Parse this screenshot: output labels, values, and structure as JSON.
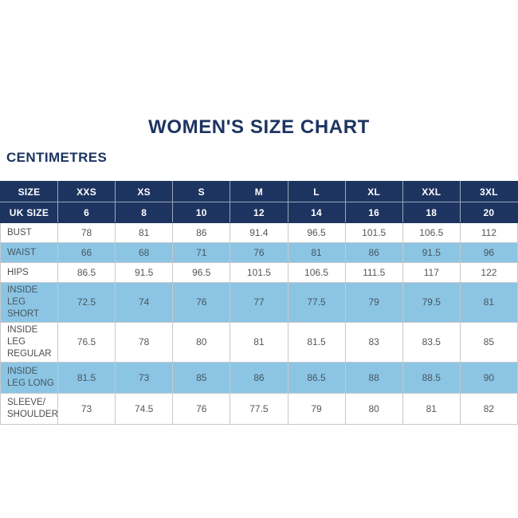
{
  "page": {
    "title": "WOMEN'S SIZE CHART",
    "unit_heading": "CENTIMETRES"
  },
  "colors": {
    "navy_header": "#1d3461",
    "highlight_blue": "#8cc5e4",
    "data_text": "#55565a",
    "grid_line": "#c6c8ca",
    "background": "#ffffff"
  },
  "chart_data": {
    "type": "table",
    "title": "WOMEN'S SIZE CHART",
    "unit_label": "CENTIMETRES",
    "header_rows": [
      {
        "label": "SIZE",
        "values": [
          "XXS",
          "XS",
          "S",
          "M",
          "L",
          "XL",
          "XXL",
          "3XL"
        ]
      },
      {
        "label": "UK SIZE",
        "values": [
          "6",
          "8",
          "10",
          "12",
          "14",
          "16",
          "18",
          "20"
        ]
      }
    ],
    "body_rows": [
      {
        "label": "BUST",
        "highlight": false,
        "values": [
          "78",
          "81",
          "86",
          "91.4",
          "96.5",
          "101.5",
          "106.5",
          "112"
        ]
      },
      {
        "label": "WAIST",
        "highlight": true,
        "values": [
          "66",
          "68",
          "71",
          "76",
          "81",
          "86",
          "91.5",
          "96"
        ]
      },
      {
        "label": "HIPS",
        "highlight": false,
        "values": [
          "86.5",
          "91.5",
          "96.5",
          "101.5",
          "106.5",
          "111.5",
          "117",
          "122"
        ]
      },
      {
        "label": "INSIDE LEG SHORT",
        "highlight": true,
        "values": [
          "72.5",
          "74",
          "76",
          "77",
          "77.5",
          "79",
          "79.5",
          "81"
        ]
      },
      {
        "label": "INSIDE LEG REGULAR",
        "highlight": false,
        "values": [
          "76.5",
          "78",
          "80",
          "81",
          "81.5",
          "83",
          "83.5",
          "85"
        ]
      },
      {
        "label": "INSIDE LEG LONG",
        "highlight": true,
        "values": [
          "81.5",
          "73",
          "85",
          "86",
          "86.5",
          "88",
          "88.5",
          "90"
        ]
      },
      {
        "label": "SLEEVE/ SHOULDER",
        "highlight": false,
        "values": [
          "73",
          "74.5",
          "76",
          "77.5",
          "79",
          "80",
          "81",
          "82"
        ]
      }
    ]
  }
}
